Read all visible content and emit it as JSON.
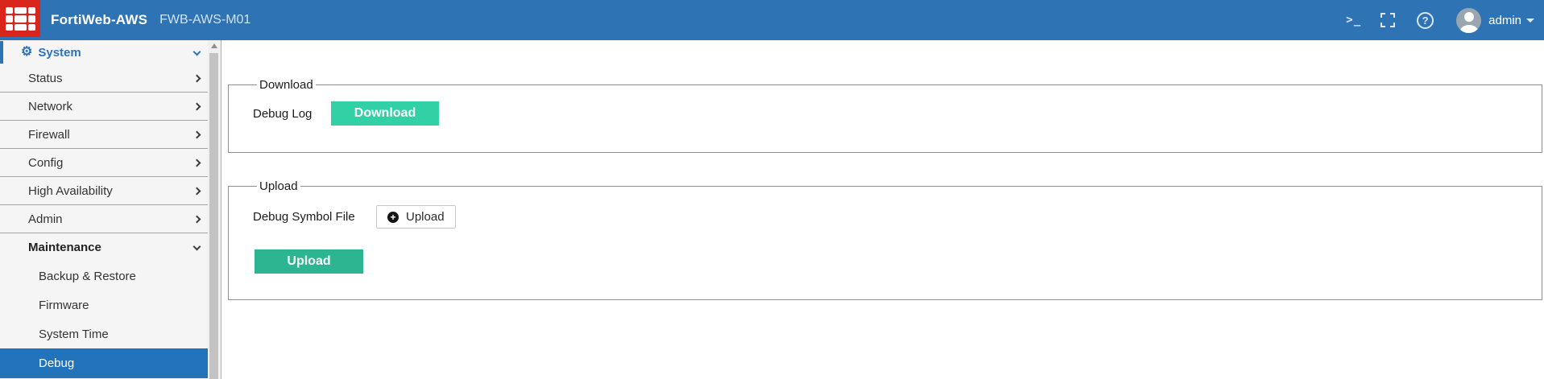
{
  "header": {
    "product_name": "FortiWeb-AWS",
    "device_name": "FWB-AWS-M01",
    "username": "admin",
    "icons": [
      "fortinet-logo",
      "cli-console-icon",
      "fullscreen-icon",
      "help-icon",
      "avatar",
      "chevron-down-icon"
    ]
  },
  "sidebar": {
    "items": [
      {
        "label": "System",
        "type": "root",
        "icon": "gear-icon",
        "chevron": "down",
        "separator": false,
        "selected": false,
        "bold": true
      },
      {
        "label": "Status",
        "type": "item",
        "chevron": "right",
        "separator": true,
        "selected": false,
        "bold": false
      },
      {
        "label": "Network",
        "type": "item",
        "chevron": "right",
        "separator": true,
        "selected": false,
        "bold": false
      },
      {
        "label": "Firewall",
        "type": "item",
        "chevron": "right",
        "separator": true,
        "selected": false,
        "bold": false
      },
      {
        "label": "Config",
        "type": "item",
        "chevron": "right",
        "separator": true,
        "selected": false,
        "bold": false
      },
      {
        "label": "High Availability",
        "type": "item",
        "chevron": "right",
        "separator": true,
        "selected": false,
        "bold": false
      },
      {
        "label": "Admin",
        "type": "item",
        "chevron": "right",
        "separator": true,
        "selected": false,
        "bold": false
      },
      {
        "label": "Maintenance",
        "type": "item",
        "chevron": "down",
        "separator": false,
        "selected": false,
        "bold": true
      },
      {
        "label": "Backup & Restore",
        "type": "sub",
        "chevron": null,
        "separator": false,
        "selected": false,
        "bold": false
      },
      {
        "label": "Firmware",
        "type": "sub",
        "chevron": null,
        "separator": false,
        "selected": false,
        "bold": false
      },
      {
        "label": "System Time",
        "type": "sub",
        "chevron": null,
        "separator": false,
        "selected": false,
        "bold": false
      },
      {
        "label": "Debug",
        "type": "sub",
        "chevron": null,
        "separator": false,
        "selected": true,
        "bold": false
      }
    ]
  },
  "main": {
    "download": {
      "legend": "Download",
      "label": "Debug Log",
      "button_label": "Download"
    },
    "upload": {
      "legend": "Upload",
      "label": "Debug Symbol File",
      "file_button_label": "Upload",
      "file_button_icon": "plus-circle-icon",
      "submit_button_label": "Upload"
    }
  },
  "colors": {
    "header_bg": "#2e74b5",
    "brand_red": "#da251c",
    "selected_bg": "#2373ba",
    "primary_button": "#31d1a5",
    "secondary_button": "#2db592",
    "sidebar_bg": "#f5f5f5"
  }
}
